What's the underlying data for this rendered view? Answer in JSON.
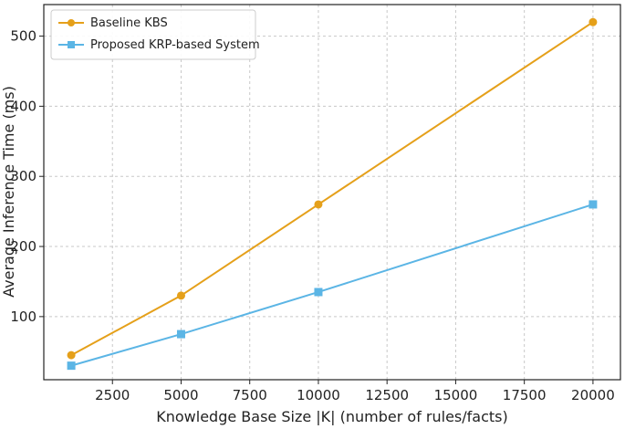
{
  "chart_data": {
    "type": "line",
    "xlabel": "Knowledge Base Size |K| (number of rules/facts)",
    "ylabel": "Average Inference Time (ms)",
    "xlim": [
      0,
      21000
    ],
    "ylim": [
      10,
      545
    ],
    "x_ticks": [
      2500,
      5000,
      7500,
      10000,
      12500,
      15000,
      17500,
      20000
    ],
    "y_ticks": [
      100,
      200,
      300,
      400,
      500
    ],
    "grid": true,
    "legend_position": "top-left",
    "x": [
      1000,
      5000,
      10000,
      20000
    ],
    "series": [
      {
        "name": "Baseline KBS",
        "values": [
          45,
          130,
          260,
          520
        ],
        "color": "#E5A01A",
        "marker": "circle"
      },
      {
        "name": "Proposed KRP-based System",
        "values": [
          30,
          75,
          135,
          260
        ],
        "color": "#5BB5E5",
        "marker": "square"
      }
    ]
  }
}
